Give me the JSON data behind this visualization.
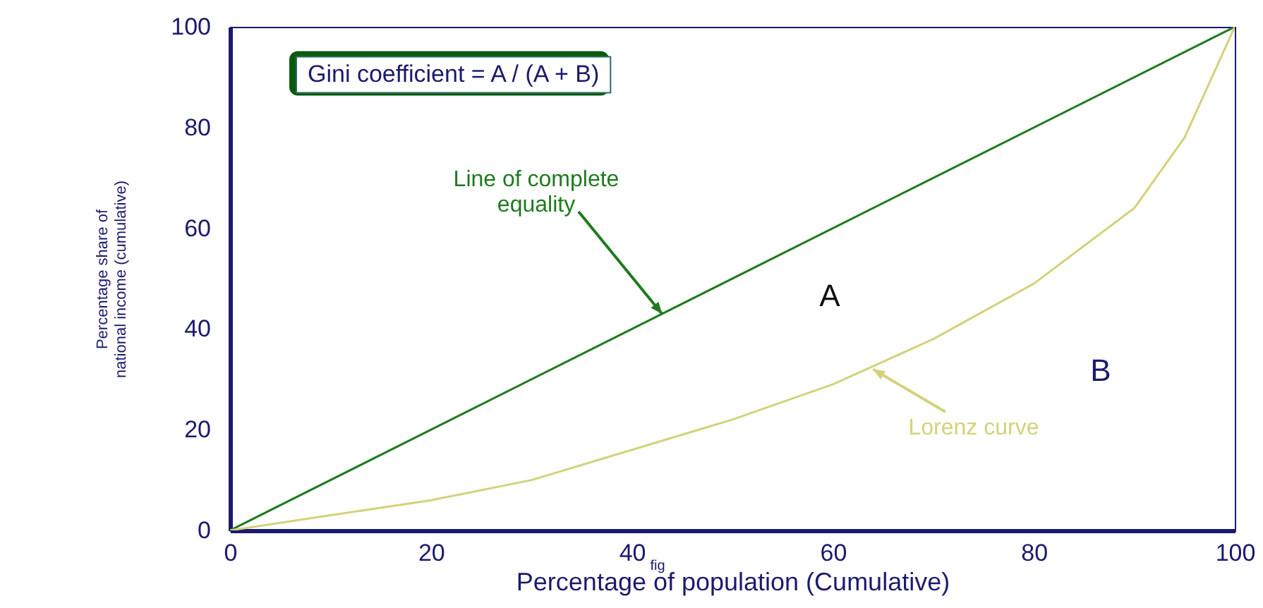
{
  "chart_data": {
    "type": "line",
    "xlabel": "Percentage of population (Cumulative)",
    "ylabel": "Percentage share of\nnational income (cumulative)",
    "xlim": [
      0,
      100
    ],
    "ylim": [
      0,
      100
    ],
    "xticks": [
      0,
      20,
      40,
      60,
      80,
      100
    ],
    "yticks": [
      0,
      20,
      40,
      60,
      80,
      100
    ],
    "grid": false,
    "marker": "none",
    "series": [
      {
        "color": "#1e7b1e",
        "x": [
          0,
          100
        ],
        "values": [
          0,
          100
        ]
      },
      {
        "color": "#d4d27a",
        "x": [
          0,
          10,
          20,
          30,
          40,
          50,
          60,
          70,
          80,
          90,
          95,
          100
        ],
        "values": [
          0,
          3,
          6,
          10,
          16,
          22,
          29,
          38,
          49,
          64,
          78,
          100
        ]
      }
    ],
    "annotations": [
      "Gini coefficient = A / (A + B)",
      {
        "text": "Line of complete\nequality",
        "x": 43,
        "y": 43
      },
      {
        "text": "Lorenz curve",
        "x": 64,
        "y": 32
      },
      "A",
      "B",
      "fig"
    ]
  }
}
